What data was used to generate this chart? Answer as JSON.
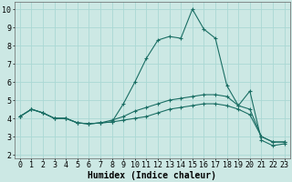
{
  "xlabel": "Humidex (Indice chaleur)",
  "ylabel": "",
  "background_color": "#cce8e4",
  "grid_color": "#aad8d4",
  "line_color": "#1a6e64",
  "xlim": [
    -0.5,
    23.5
  ],
  "ylim": [
    1.8,
    10.4
  ],
  "yticks": [
    2,
    3,
    4,
    5,
    6,
    7,
    8,
    9,
    10
  ],
  "xticks": [
    0,
    1,
    2,
    3,
    4,
    5,
    6,
    7,
    8,
    9,
    10,
    11,
    12,
    13,
    14,
    15,
    16,
    17,
    18,
    19,
    20,
    21,
    22,
    23
  ],
  "series": [
    {
      "x": [
        0,
        1,
        2,
        3,
        4,
        5,
        6,
        7,
        8,
        9,
        10,
        11,
        12,
        13,
        14,
        15,
        16,
        17,
        18,
        19,
        20,
        21,
        22,
        23
      ],
      "y": [
        4.1,
        4.5,
        4.3,
        4.0,
        4.0,
        3.75,
        3.7,
        3.75,
        3.8,
        4.8,
        6.0,
        7.3,
        8.3,
        8.5,
        8.4,
        10.0,
        8.9,
        8.4,
        5.8,
        4.7,
        5.5,
        2.8,
        2.5,
        2.6
      ]
    },
    {
      "x": [
        0,
        1,
        2,
        3,
        4,
        5,
        6,
        7,
        8,
        9,
        10,
        11,
        12,
        13,
        14,
        15,
        16,
        17,
        18,
        19,
        20,
        21,
        22,
        23
      ],
      "y": [
        4.1,
        4.5,
        4.3,
        4.0,
        4.0,
        3.75,
        3.7,
        3.75,
        3.9,
        4.1,
        4.4,
        4.6,
        4.8,
        5.0,
        5.1,
        5.2,
        5.3,
        5.3,
        5.2,
        4.7,
        4.5,
        3.0,
        2.7,
        2.7
      ]
    },
    {
      "x": [
        0,
        1,
        2,
        3,
        4,
        5,
        6,
        7,
        8,
        9,
        10,
        11,
        12,
        13,
        14,
        15,
        16,
        17,
        18,
        19,
        20,
        21,
        22,
        23
      ],
      "y": [
        4.1,
        4.5,
        4.3,
        4.0,
        4.0,
        3.75,
        3.7,
        3.75,
        3.8,
        3.9,
        4.0,
        4.1,
        4.3,
        4.5,
        4.6,
        4.7,
        4.8,
        4.8,
        4.7,
        4.5,
        4.2,
        3.0,
        2.7,
        2.7
      ]
    }
  ],
  "tick_fontsize": 6,
  "xlabel_fontsize": 7,
  "marker_size": 2.5,
  "linewidth": 0.8
}
